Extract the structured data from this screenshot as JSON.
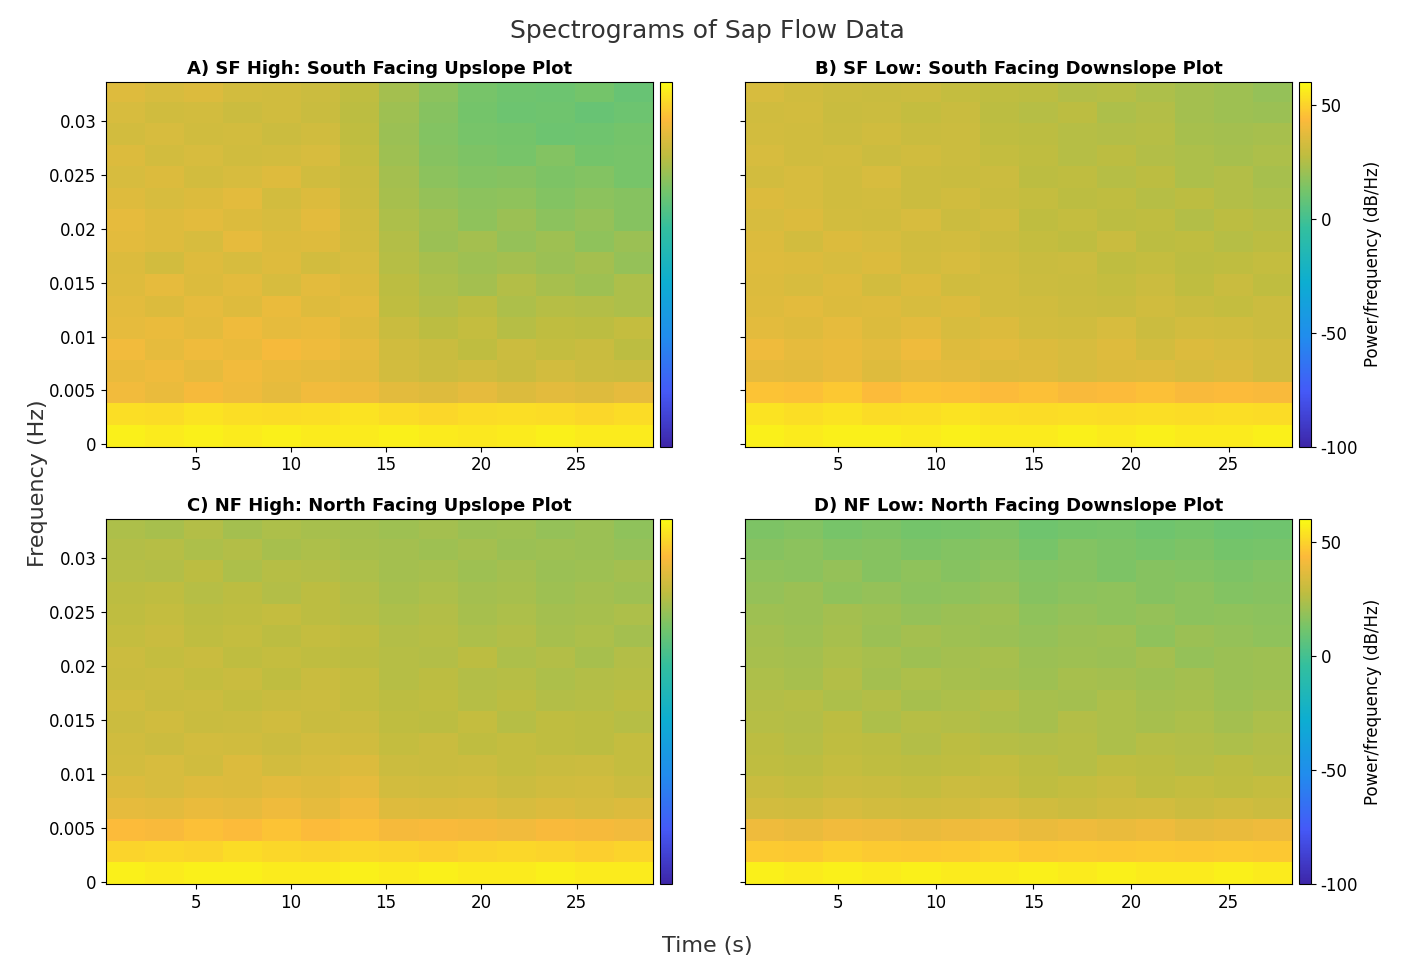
{
  "figure": {
    "title": "Spectrograms of Sap Flow Data",
    "x_label": "Time (s)",
    "y_label": "Frequency (Hz)"
  },
  "chart_data": [
    {
      "type": "heatmap",
      "title": "A) SF High: South Facing Upslope Plot",
      "x": [
        1.325,
        3.375,
        5.425,
        7.475,
        9.525,
        11.575,
        13.625,
        15.675,
        17.725,
        19.775,
        21.825,
        23.875,
        25.925,
        27.975
      ],
      "y": [
        0.0008,
        0.0028,
        0.0048,
        0.0068,
        0.0088,
        0.0108,
        0.0128,
        0.0148,
        0.0168,
        0.0188,
        0.0208,
        0.0228,
        0.0248,
        0.0268,
        0.0288,
        0.0308,
        0.0328
      ],
      "xlim": [
        0.3,
        29.0
      ],
      "ylim": [
        -0.0002,
        0.0336
      ],
      "xticks": [
        5,
        10,
        15,
        20,
        25
      ],
      "yticks": [
        0,
        0.005,
        0.01,
        0.015,
        0.02,
        0.025,
        0.03
      ],
      "colorbar": {
        "range": [
          -100,
          60
        ]
      },
      "cells": [
        [
          57,
          56,
          57,
          56,
          57,
          56,
          56,
          57,
          56,
          55,
          56,
          57,
          56,
          56
        ],
        [
          53,
          52,
          54,
          53,
          52,
          53,
          54,
          52,
          51,
          52,
          53,
          52,
          51,
          52
        ],
        [
          41,
          39,
          42,
          40,
          38,
          41,
          40,
          37,
          36,
          38,
          35,
          37,
          36,
          38
        ],
        [
          39,
          40,
          38,
          41,
          39,
          38,
          37,
          33,
          31,
          32,
          30,
          33,
          31,
          30
        ],
        [
          41,
          38,
          40,
          39,
          42,
          40,
          38,
          32,
          30,
          28,
          31,
          29,
          30,
          27
        ],
        [
          38,
          39,
          37,
          40,
          38,
          39,
          36,
          30,
          27,
          29,
          26,
          28,
          27,
          29
        ],
        [
          37,
          35,
          38,
          36,
          39,
          36,
          37,
          28,
          25,
          27,
          24,
          26,
          25,
          24
        ],
        [
          36,
          38,
          35,
          37,
          34,
          37,
          35,
          27,
          24,
          22,
          25,
          23,
          21,
          24
        ],
        [
          35,
          33,
          36,
          34,
          36,
          33,
          34,
          26,
          23,
          21,
          22,
          20,
          22,
          19
        ],
        [
          37,
          36,
          34,
          38,
          35,
          36,
          33,
          25,
          20,
          22,
          19,
          21,
          18,
          20
        ],
        [
          38,
          36,
          37,
          35,
          34,
          37,
          32,
          24,
          21,
          18,
          20,
          17,
          19,
          16
        ],
        [
          36,
          34,
          35,
          37,
          33,
          35,
          31,
          23,
          19,
          17,
          18,
          15,
          17,
          16
        ],
        [
          34,
          35,
          33,
          34,
          36,
          32,
          30,
          22,
          17,
          15,
          16,
          14,
          15,
          13
        ],
        [
          35,
          33,
          34,
          32,
          33,
          34,
          29,
          21,
          16,
          14,
          13,
          15,
          12,
          13
        ],
        [
          33,
          34,
          32,
          33,
          31,
          32,
          28,
          20,
          15,
          13,
          12,
          10,
          11,
          12
        ],
        [
          34,
          32,
          33,
          31,
          32,
          30,
          27,
          21,
          16,
          12,
          10,
          11,
          9,
          10
        ],
        [
          36,
          34,
          35,
          33,
          32,
          31,
          28,
          22,
          17,
          13,
          11,
          10,
          12,
          9
        ]
      ]
    },
    {
      "type": "heatmap",
      "title": "B) SF Low: South Facing Downslope Plot",
      "x": [
        1.25,
        3.25,
        5.25,
        7.25,
        9.25,
        11.25,
        13.25,
        15.25,
        17.25,
        19.25,
        21.25,
        23.25,
        25.25,
        27.25
      ],
      "y": [
        0.0008,
        0.0028,
        0.0048,
        0.0068,
        0.0088,
        0.0108,
        0.0128,
        0.0148,
        0.0168,
        0.0188,
        0.0208,
        0.0228,
        0.0248,
        0.0268,
        0.0288,
        0.0308,
        0.0328
      ],
      "xlim": [
        0.25,
        28.25
      ],
      "ylim": [
        -0.0002,
        0.0336
      ],
      "xticks": [
        5,
        10,
        15,
        20,
        25
      ],
      "yticks": [
        0,
        0.005,
        0.01,
        0.015,
        0.02,
        0.025,
        0.03
      ],
      "tick_labels": "x",
      "colorbar": {
        "range": [
          -100,
          60
        ],
        "ticks": [
          -100,
          -50,
          0,
          50
        ],
        "label": "Power/frequency (dB/Hz)"
      },
      "cells": [
        [
          57,
          56,
          57,
          57,
          56,
          57,
          56,
          56,
          57,
          56,
          57,
          56,
          56,
          57
        ],
        [
          54,
          53,
          54,
          52,
          53,
          54,
          53,
          52,
          53,
          52,
          53,
          52,
          53,
          52
        ],
        [
          46,
          45,
          47,
          44,
          46,
          45,
          44,
          45,
          43,
          44,
          45,
          43,
          44,
          43
        ],
        [
          38,
          37,
          39,
          36,
          38,
          37,
          35,
          36,
          34,
          35,
          36,
          34,
          35,
          33
        ],
        [
          40,
          38,
          39,
          37,
          40,
          36,
          37,
          35,
          34,
          36,
          33,
          35,
          34,
          33
        ],
        [
          37,
          36,
          38,
          35,
          37,
          34,
          35,
          33,
          32,
          34,
          31,
          33,
          32,
          31
        ],
        [
          36,
          37,
          35,
          36,
          34,
          35,
          33,
          32,
          31,
          30,
          32,
          30,
          29,
          31
        ],
        [
          35,
          34,
          36,
          33,
          35,
          32,
          33,
          31,
          30,
          29,
          31,
          28,
          30,
          28
        ],
        [
          36,
          35,
          34,
          35,
          33,
          34,
          32,
          30,
          31,
          28,
          29,
          27,
          28,
          29
        ],
        [
          35,
          33,
          35,
          34,
          32,
          33,
          31,
          29,
          28,
          30,
          27,
          28,
          26,
          27
        ],
        [
          34,
          35,
          33,
          32,
          34,
          31,
          32,
          28,
          29,
          27,
          28,
          25,
          27,
          26
        ],
        [
          35,
          34,
          32,
          33,
          31,
          32,
          30,
          29,
          27,
          28,
          26,
          27,
          25,
          24
        ],
        [
          33,
          34,
          32,
          34,
          31,
          30,
          31,
          27,
          28,
          26,
          27,
          24,
          25,
          23
        ],
        [
          34,
          32,
          33,
          31,
          32,
          31,
          29,
          28,
          26,
          27,
          25,
          24,
          23,
          24
        ],
        [
          33,
          32,
          31,
          32,
          30,
          31,
          28,
          27,
          26,
          25,
          26,
          23,
          22,
          23
        ],
        [
          32,
          33,
          30,
          31,
          29,
          30,
          27,
          26,
          27,
          24,
          25,
          22,
          21,
          20
        ],
        [
          34,
          32,
          31,
          30,
          31,
          29,
          28,
          27,
          25,
          26,
          24,
          22,
          21,
          19
        ]
      ]
    },
    {
      "type": "heatmap",
      "title": "C) NF High: North Facing Upslope Plot",
      "x": [
        1.325,
        3.375,
        5.425,
        7.475,
        9.525,
        11.575,
        13.625,
        15.675,
        17.725,
        19.775,
        21.825,
        23.875,
        25.925,
        27.975
      ],
      "y": [
        0.0008,
        0.0028,
        0.0048,
        0.0068,
        0.0088,
        0.0108,
        0.0128,
        0.0148,
        0.0168,
        0.0188,
        0.0208,
        0.0228,
        0.0248,
        0.0268,
        0.0288,
        0.0308,
        0.0328
      ],
      "xlim": [
        0.3,
        29.0
      ],
      "ylim": [
        -0.0002,
        0.0336
      ],
      "xticks": [
        5,
        10,
        15,
        20,
        25
      ],
      "yticks": [
        0,
        0.005,
        0.01,
        0.015,
        0.02,
        0.025,
        0.03
      ],
      "colorbar": {
        "range": [
          -100,
          60
        ]
      },
      "cells": [
        [
          57,
          56,
          57,
          57,
          56,
          56,
          57,
          56,
          57,
          56,
          56,
          57,
          56,
          56
        ],
        [
          50,
          51,
          50,
          52,
          51,
          50,
          51,
          50,
          49,
          50,
          51,
          50,
          49,
          50
        ],
        [
          44,
          43,
          45,
          44,
          46,
          44,
          45,
          42,
          43,
          42,
          41,
          43,
          42,
          41
        ],
        [
          38,
          37,
          39,
          38,
          40,
          38,
          41,
          36,
          35,
          36,
          34,
          35,
          34,
          35
        ],
        [
          35,
          34,
          36,
          35,
          37,
          36,
          38,
          33,
          32,
          33,
          31,
          32,
          33,
          31
        ],
        [
          33,
          34,
          32,
          35,
          33,
          34,
          35,
          31,
          30,
          31,
          29,
          30,
          31,
          29
        ],
        [
          32,
          31,
          33,
          32,
          31,
          33,
          32,
          29,
          30,
          28,
          29,
          28,
          27,
          29
        ],
        [
          31,
          32,
          30,
          31,
          32,
          30,
          31,
          28,
          27,
          29,
          26,
          28,
          27,
          26
        ],
        [
          32,
          30,
          31,
          29,
          30,
          31,
          29,
          27,
          28,
          26,
          27,
          25,
          26,
          27
        ],
        [
          30,
          31,
          29,
          30,
          28,
          30,
          29,
          26,
          27,
          25,
          26,
          24,
          25,
          26
        ],
        [
          31,
          29,
          30,
          28,
          29,
          28,
          27,
          26,
          25,
          27,
          24,
          25,
          23,
          25
        ],
        [
          29,
          30,
          28,
          29,
          27,
          29,
          28,
          25,
          26,
          24,
          25,
          23,
          24,
          22
        ],
        [
          28,
          29,
          27,
          28,
          29,
          27,
          26,
          24,
          25,
          23,
          24,
          22,
          23,
          24
        ],
        [
          27,
          28,
          26,
          27,
          25,
          27,
          25,
          23,
          24,
          22,
          23,
          21,
          22,
          21
        ],
        [
          26,
          25,
          27,
          24,
          26,
          25,
          24,
          22,
          23,
          21,
          22,
          20,
          21,
          22
        ],
        [
          25,
          26,
          24,
          25,
          23,
          24,
          23,
          22,
          21,
          22,
          20,
          21,
          20,
          19
        ],
        [
          24,
          23,
          25,
          22,
          24,
          23,
          22,
          21,
          22,
          20,
          21,
          19,
          20,
          18
        ]
      ]
    },
    {
      "type": "heatmap",
      "title": "D) NF Low: North Facing Downslope Plot",
      "x": [
        1.25,
        3.25,
        5.25,
        7.25,
        9.25,
        11.25,
        13.25,
        15.25,
        17.25,
        19.25,
        21.25,
        23.25,
        25.25,
        27.25
      ],
      "y": [
        0.0008,
        0.0028,
        0.0048,
        0.0068,
        0.0088,
        0.0108,
        0.0128,
        0.0148,
        0.0168,
        0.0188,
        0.0208,
        0.0228,
        0.0248,
        0.0268,
        0.0288,
        0.0308,
        0.0328
      ],
      "xlim": [
        0.25,
        28.25
      ],
      "ylim": [
        -0.0002,
        0.0336
      ],
      "xticks": [
        5,
        10,
        15,
        20,
        25
      ],
      "yticks": [
        0,
        0.005,
        0.01,
        0.015,
        0.02,
        0.025,
        0.03
      ],
      "tick_labels": "x",
      "colorbar": {
        "range": [
          -100,
          60
        ],
        "ticks": [
          -100,
          -50,
          0,
          50
        ],
        "label": "Power/frequency (dB/Hz)"
      },
      "cells": [
        [
          57,
          56,
          57,
          56,
          57,
          56,
          56,
          57,
          56,
          57,
          56,
          56,
          57,
          56
        ],
        [
          48,
          47,
          49,
          48,
          47,
          48,
          49,
          47,
          48,
          47,
          48,
          47,
          48,
          47
        ],
        [
          40,
          39,
          41,
          40,
          39,
          40,
          41,
          39,
          40,
          39,
          40,
          38,
          39,
          40
        ],
        [
          33,
          32,
          34,
          33,
          32,
          33,
          34,
          32,
          31,
          32,
          33,
          31,
          32,
          31
        ],
        [
          30,
          29,
          31,
          30,
          29,
          31,
          30,
          28,
          29,
          30,
          28,
          29,
          28,
          29
        ],
        [
          28,
          27,
          29,
          28,
          27,
          28,
          29,
          27,
          26,
          28,
          27,
          26,
          27,
          26
        ],
        [
          27,
          26,
          28,
          27,
          25,
          27,
          26,
          25,
          26,
          24,
          26,
          25,
          24,
          25
        ],
        [
          26,
          25,
          27,
          24,
          26,
          25,
          24,
          23,
          25,
          24,
          23,
          24,
          22,
          24
        ],
        [
          25,
          26,
          24,
          25,
          23,
          24,
          25,
          23,
          22,
          24,
          22,
          23,
          21,
          22
        ],
        [
          24,
          23,
          25,
          22,
          24,
          23,
          22,
          21,
          23,
          22,
          21,
          22,
          20,
          21
        ],
        [
          23,
          22,
          24,
          23,
          21,
          22,
          23,
          20,
          21,
          20,
          22,
          19,
          20,
          21
        ],
        [
          22,
          21,
          23,
          20,
          22,
          21,
          20,
          19,
          20,
          21,
          18,
          20,
          19,
          18
        ],
        [
          21,
          20,
          22,
          21,
          19,
          20,
          21,
          18,
          19,
          18,
          19,
          17,
          18,
          17
        ],
        [
          19,
          20,
          18,
          19,
          17,
          18,
          19,
          16,
          17,
          18,
          16,
          17,
          15,
          16
        ],
        [
          18,
          17,
          19,
          16,
          18,
          16,
          17,
          15,
          16,
          14,
          16,
          15,
          14,
          15
        ],
        [
          16,
          17,
          15,
          16,
          14,
          15,
          16,
          13,
          15,
          14,
          13,
          14,
          12,
          13
        ],
        [
          14,
          15,
          13,
          14,
          12,
          13,
          14,
          11,
          12,
          13,
          11,
          12,
          10,
          11
        ]
      ]
    }
  ]
}
